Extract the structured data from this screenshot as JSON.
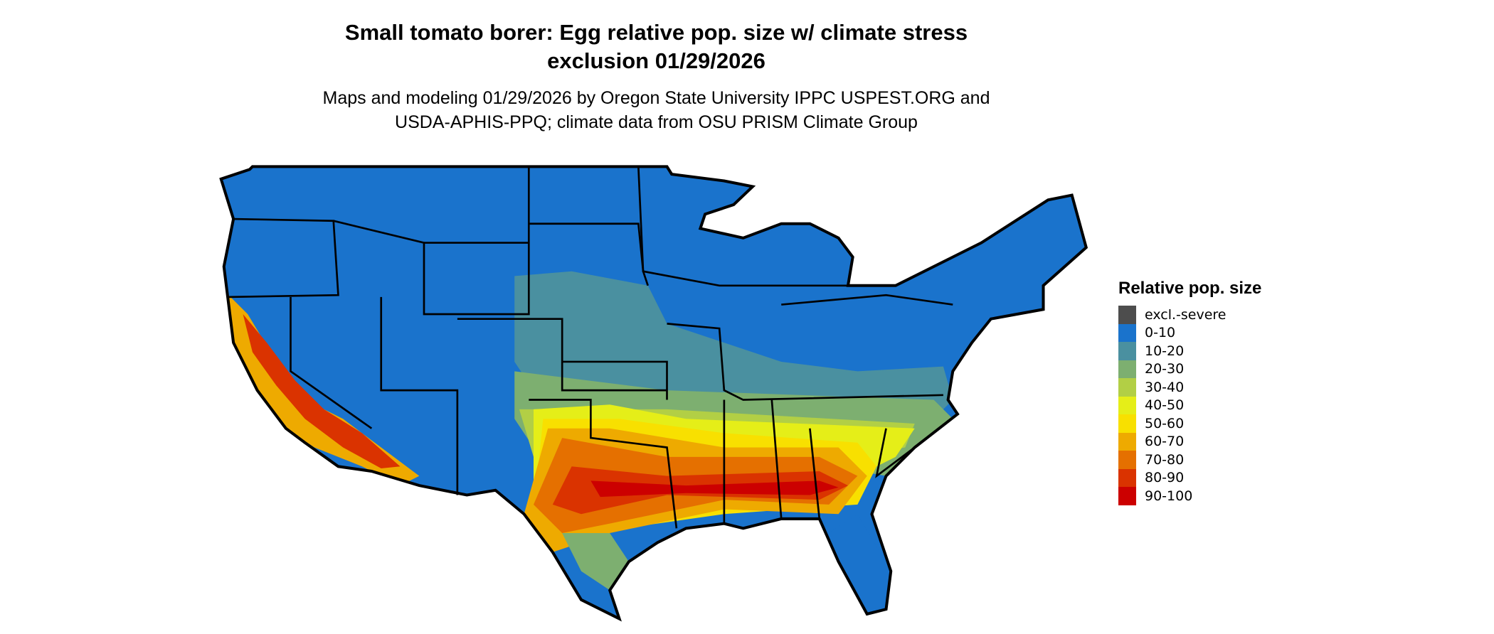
{
  "title": {
    "line1": "Small tomato borer: Egg relative pop. size w/ climate stress",
    "line2": "exclusion 01/29/2026"
  },
  "subtitle": {
    "line1": "Maps and modeling 01/29/2026 by Oregon State University IPPC USPEST.ORG and",
    "line2": "USDA-APHIS-PPQ; climate data from OSU PRISM Climate Group"
  },
  "legend": {
    "title": "Relative pop. size",
    "items": [
      {
        "label": "excl.-severe",
        "color": "#4d4d4d"
      },
      {
        "label": "0-10",
        "color": "#1a73cc"
      },
      {
        "label": "10-20",
        "color": "#4a90a0"
      },
      {
        "label": "20-30",
        "color": "#7daf70"
      },
      {
        "label": "30-40",
        "color": "#b2cf45"
      },
      {
        "label": "40-50",
        "color": "#e5ee18"
      },
      {
        "label": "50-60",
        "color": "#f8e000"
      },
      {
        "label": "60-70",
        "color": "#eeaa00"
      },
      {
        "label": "70-80",
        "color": "#e57000"
      },
      {
        "label": "80-90",
        "color": "#da3300"
      },
      {
        "label": "90-100",
        "color": "#cc0000"
      }
    ]
  }
}
